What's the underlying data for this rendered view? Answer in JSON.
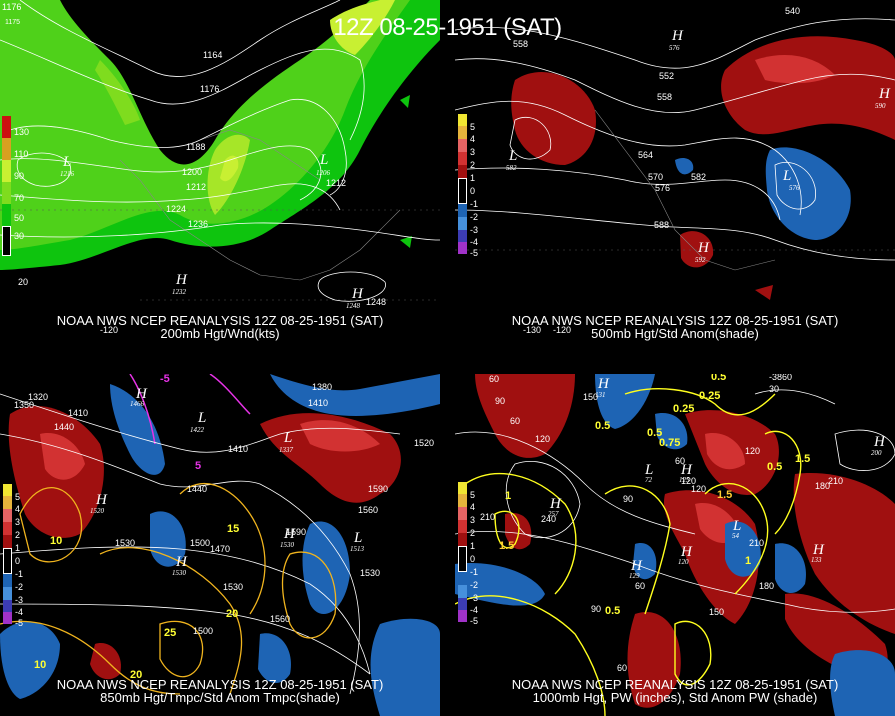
{
  "header": {
    "title": "12Z 08-25-1951 (SAT)"
  },
  "colors": {
    "background": "#000000",
    "wind_light": "#0ec40e",
    "wind_mid": "#7fdc1e",
    "wind_high": "#c8f032",
    "pos_anom": "#a01010",
    "pos_anom_light": "#d23232",
    "neg_anom": "#1e64b4",
    "neg_anom_light": "#4690dc",
    "temp_contour": "#f0b41e",
    "pw_contour": "#ffff1e",
    "freezing": "#e632e6"
  },
  "panels": [
    {
      "name": "200mb",
      "caption_line1": "NOAA NWS NCEP REANALYSIS 12Z 08-25-1951 (SAT)",
      "caption_line2": "200mb Hgt/Wnd(kts)",
      "colorbar": [
        {
          "label": "130",
          "color": "#cc1010"
        },
        {
          "label": "110",
          "color": "#d8a020"
        },
        {
          "label": "90",
          "color": "#c8f032"
        },
        {
          "label": "70",
          "color": "#7fdc1e"
        },
        {
          "label": "50",
          "color": "#0ec40e"
        },
        {
          "label": "30",
          "color": "#000000"
        }
      ],
      "contour_labels": [
        "1176",
        "1175",
        "1164",
        "1176",
        "1188",
        "1200",
        "1212",
        "1224",
        "1236",
        "1212",
        "1248",
        "20",
        "-120"
      ],
      "centres": [
        {
          "type": "L",
          "value": "1216"
        },
        {
          "type": "L",
          "value": "1206"
        },
        {
          "type": "H",
          "value": "1232"
        },
        {
          "type": "H",
          "value": "1248"
        }
      ]
    },
    {
      "name": "500mb",
      "caption_line1": "NOAA NWS NCEP REANALYSIS 12Z 08-25-1951 (SAT)",
      "caption_line2": "500mb Hgt/Std Anom(shade)",
      "colorbar": [
        {
          "label": "5",
          "color": "#f0e632"
        },
        {
          "label": "4",
          "color": "#e6b43c"
        },
        {
          "label": "3",
          "color": "#e66464"
        },
        {
          "label": "2",
          "color": "#d23232"
        },
        {
          "label": "1",
          "color": "#a01010"
        },
        {
          "label": "0",
          "color": "#000000"
        },
        {
          "label": "-1",
          "color": "#000000"
        },
        {
          "label": "-2",
          "color": "#1e64b4"
        },
        {
          "label": "-3",
          "color": "#4690dc"
        },
        {
          "label": "-4",
          "color": "#3c3cb4"
        },
        {
          "label": "-5",
          "color": "#a032c8"
        }
      ],
      "contour_labels": [
        "540",
        "558",
        "552",
        "558",
        "564",
        "570",
        "576",
        "582",
        "588",
        "-130",
        "-120"
      ],
      "centres": [
        {
          "type": "H",
          "value": "576"
        },
        {
          "type": "H",
          "value": "590"
        },
        {
          "type": "L",
          "value": "582"
        },
        {
          "type": "L",
          "value": "576"
        },
        {
          "type": "H",
          "value": "592"
        }
      ]
    },
    {
      "name": "850mb",
      "caption_line1": "NOAA NWS NCEP REANALYSIS 12Z 08-25-1951 (SAT)",
      "caption_line2": "850mb Hgt/Tmpc/Std Anom Tmpc(shade)",
      "colorbar": [
        {
          "label": "5",
          "color": "#f0e632"
        },
        {
          "label": "4",
          "color": "#e6b43c"
        },
        {
          "label": "3",
          "color": "#e66464"
        },
        {
          "label": "2",
          "color": "#d23232"
        },
        {
          "label": "1",
          "color": "#a01010"
        },
        {
          "label": "0",
          "color": "#000000"
        },
        {
          "label": "-1",
          "color": "#000000"
        },
        {
          "label": "-2",
          "color": "#1e64b4"
        },
        {
          "label": "-3",
          "color": "#4690dc"
        },
        {
          "label": "-4",
          "color": "#3c3cb4"
        },
        {
          "label": "-5",
          "color": "#a032c8"
        }
      ],
      "contour_labels": [
        "1350",
        "1320",
        "1410",
        "1440",
        "1410",
        "1380",
        "1410",
        "1440",
        "1590",
        "1560",
        "1530",
        "1500",
        "1470",
        "1530",
        "1590",
        "1530",
        "1560",
        "1500",
        "1520",
        "10",
        "15",
        "20",
        "25",
        "20",
        "10",
        "-5",
        "5"
      ],
      "centres": [
        {
          "type": "H",
          "value": "1466"
        },
        {
          "type": "L",
          "value": "1422"
        },
        {
          "type": "L",
          "value": "1337"
        },
        {
          "type": "H",
          "value": "1520"
        },
        {
          "type": "H",
          "value": "1530"
        },
        {
          "type": "H",
          "value": "1530"
        },
        {
          "type": "L",
          "value": "1513"
        }
      ]
    },
    {
      "name": "1000mb",
      "caption_line1": "NOAA NWS NCEP REANALYSIS 12Z 08-25-1951 (SAT)",
      "caption_line2": "1000mb Hgt, PW (inches), Std Anom PW (shade)",
      "colorbar": [
        {
          "label": "5",
          "color": "#f0e632"
        },
        {
          "label": "4",
          "color": "#e6b43c"
        },
        {
          "label": "3",
          "color": "#e66464"
        },
        {
          "label": "2",
          "color": "#d23232"
        },
        {
          "label": "1",
          "color": "#a01010"
        },
        {
          "label": "0",
          "color": "#000000"
        },
        {
          "label": "-1",
          "color": "#000000"
        },
        {
          "label": "-2",
          "color": "#1e64b4"
        },
        {
          "label": "-3",
          "color": "#4690dc"
        },
        {
          "label": "-4",
          "color": "#3c3cb4"
        },
        {
          "label": "-5",
          "color": "#a032c8"
        }
      ],
      "contour_labels": [
        "60",
        "90",
        "60",
        "120",
        "150",
        "210",
        "240",
        "90",
        "120",
        "0.5",
        "0.25",
        "0.25",
        "0.5",
        "0.75",
        "1",
        "1.5",
        "0.5",
        "1.5",
        "0.5",
        "1",
        "180",
        "210",
        "120",
        "60",
        "90",
        "150",
        "210",
        "180",
        "60",
        "120",
        "0.5",
        "1.5",
        "-3860",
        "30",
        "60"
      ],
      "centres": [
        {
          "type": "H",
          "value": "131"
        },
        {
          "type": "H",
          "value": "257"
        },
        {
          "type": "L",
          "value": "72"
        },
        {
          "type": "H",
          "value": "125"
        },
        {
          "type": "H",
          "value": "129"
        },
        {
          "type": "H",
          "value": "120"
        },
        {
          "type": "L",
          "value": "54"
        },
        {
          "type": "H",
          "value": "133"
        },
        {
          "type": "H",
          "value": "200"
        }
      ]
    }
  ]
}
